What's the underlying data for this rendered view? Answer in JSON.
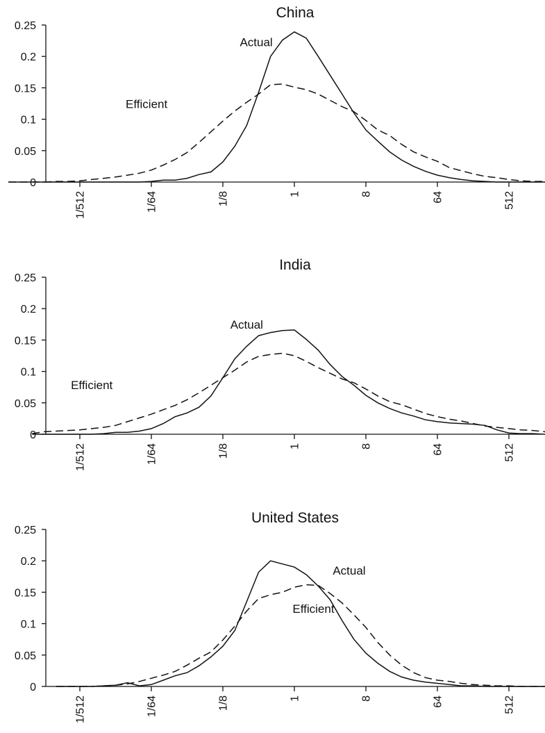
{
  "chart_data": [
    {
      "type": "line",
      "title": "China",
      "xlabel": "",
      "ylabel": "",
      "x_scale": "log2",
      "x_ticks": [
        "1/512",
        "1/64",
        "1/8",
        "1",
        "8",
        "64",
        "512"
      ],
      "ylim": [
        0,
        0.25
      ],
      "y_ticks": [
        "0",
        "0.05",
        "0.1",
        "0.15",
        "0.2",
        "0.25"
      ],
      "x": [
        -12,
        -11.5,
        -11,
        -10.5,
        -10,
        -9.5,
        -9,
        -8.5,
        -8,
        -7.5,
        -7,
        -6.5,
        -6,
        -5.5,
        -5,
        -4.5,
        -4,
        -3.5,
        -3,
        -2.5,
        -2,
        -1.5,
        -1,
        -0.5,
        0,
        0.5,
        1,
        1.5,
        2,
        2.5,
        3,
        3.5,
        4,
        4.5,
        5,
        5.5,
        6,
        6.5,
        7,
        7.5,
        8,
        8.5,
        9,
        9.5,
        10,
        10.5,
        11
      ],
      "series": [
        {
          "name": "Actual",
          "values": [
            0,
            0,
            0,
            0,
            0,
            0,
            0,
            0,
            0,
            0,
            0,
            0,
            0.001,
            0.003,
            0.003,
            0.006,
            0.012,
            0.016,
            0.032,
            0.057,
            0.09,
            0.143,
            0.2,
            0.226,
            0.239,
            0.229,
            0.2,
            0.17,
            0.14,
            0.11,
            0.083,
            0.065,
            0.048,
            0.035,
            0.025,
            0.017,
            0.011,
            0.007,
            0.004,
            0.002,
            0.001,
            0,
            0,
            0,
            0,
            0,
            0
          ]
        },
        {
          "name": "Efficient",
          "values": [
            0,
            0,
            0,
            0,
            0.001,
            0.001,
            0.002,
            0.004,
            0.006,
            0.008,
            0.011,
            0.014,
            0.019,
            0.027,
            0.036,
            0.047,
            0.063,
            0.08,
            0.097,
            0.113,
            0.127,
            0.14,
            0.155,
            0.156,
            0.151,
            0.147,
            0.14,
            0.13,
            0.12,
            0.112,
            0.098,
            0.083,
            0.074,
            0.06,
            0.048,
            0.04,
            0.033,
            0.023,
            0.018,
            0.013,
            0.009,
            0.007,
            0.004,
            0.002,
            0.001,
            0.001,
            0
          ]
        }
      ],
      "annotations": [
        {
          "text": "Actual",
          "x": -1.6,
          "y": 0.216
        },
        {
          "text": "Efficient",
          "x": -6.2,
          "y": 0.118
        }
      ]
    },
    {
      "type": "line",
      "title": "India",
      "xlabel": "",
      "ylabel": "",
      "x_scale": "log2",
      "x_ticks": [
        "1/512",
        "1/64",
        "1/8",
        "1",
        "8",
        "64",
        "512"
      ],
      "ylim": [
        0,
        0.25
      ],
      "y_ticks": [
        "0",
        "0.05",
        "0.1",
        "0.15",
        "0.2",
        "0.25"
      ],
      "x": [
        -11,
        -10.5,
        -10,
        -9.5,
        -9,
        -8.5,
        -8,
        -7.5,
        -7,
        -6.5,
        -6,
        -5.5,
        -5,
        -4.5,
        -4,
        -3.5,
        -3,
        -2.5,
        -2,
        -1.5,
        -1,
        -0.5,
        0,
        0.5,
        1,
        1.5,
        2,
        2.5,
        3,
        3.5,
        4,
        4.5,
        5,
        5.5,
        6,
        6.5,
        7,
        7.5,
        8,
        8.5,
        9,
        9.5,
        10,
        10.5,
        11
      ],
      "series": [
        {
          "name": "Actual",
          "values": [
            0,
            0,
            0,
            0,
            0,
            0,
            0.001,
            0.003,
            0.003,
            0.005,
            0.009,
            0.017,
            0.028,
            0.034,
            0.043,
            0.061,
            0.09,
            0.12,
            0.14,
            0.157,
            0.162,
            0.165,
            0.166,
            0.151,
            0.134,
            0.111,
            0.092,
            0.078,
            0.062,
            0.05,
            0.041,
            0.034,
            0.029,
            0.023,
            0.02,
            0.018,
            0.017,
            0.016,
            0.014,
            0.007,
            0.002,
            0.001,
            0.001,
            0,
            0
          ]
        },
        {
          "name": "Efficient",
          "values": [
            0.001,
            0.004,
            0.005,
            0.006,
            0.007,
            0.009,
            0.011,
            0.014,
            0.02,
            0.026,
            0.032,
            0.039,
            0.046,
            0.055,
            0.066,
            0.078,
            0.09,
            0.102,
            0.115,
            0.124,
            0.127,
            0.129,
            0.125,
            0.116,
            0.106,
            0.097,
            0.088,
            0.082,
            0.072,
            0.061,
            0.052,
            0.047,
            0.04,
            0.033,
            0.028,
            0.024,
            0.021,
            0.017,
            0.013,
            0.011,
            0.009,
            0.007,
            0.006,
            0.004,
            0.002
          ]
        }
      ],
      "annotations": [
        {
          "text": "Actual",
          "x": -2.0,
          "y": 0.168
        },
        {
          "text": "Efficient",
          "x": -8.5,
          "y": 0.072
        }
      ]
    },
    {
      "type": "line",
      "title": "United States",
      "xlabel": "",
      "ylabel": "",
      "x_scale": "log2",
      "x_ticks": [
        "1/512",
        "1/64",
        "1/8",
        "1",
        "8",
        "64",
        "512"
      ],
      "ylim": [
        0,
        0.25
      ],
      "y_ticks": [
        "0",
        "0.05",
        "0.1",
        "0.15",
        "0.2",
        "0.25"
      ],
      "x": [
        -10,
        -9.5,
        -9,
        -8.5,
        -8,
        -7.5,
        -7,
        -6.5,
        -6,
        -5.5,
        -5,
        -4.5,
        -4,
        -3.5,
        -3,
        -2.5,
        -2,
        -1.5,
        -1,
        -0.5,
        0,
        0.5,
        1,
        1.5,
        2,
        2.5,
        3,
        3.5,
        4,
        4.5,
        5,
        5.5,
        6,
        6.5,
        7,
        7.5,
        8,
        8.5,
        9,
        9.5,
        10,
        10.5,
        11
      ],
      "series": [
        {
          "name": "Actual",
          "values": [
            0,
            0,
            0,
            0,
            0.001,
            0.002,
            0.006,
            0.001,
            0.003,
            0.01,
            0.017,
            0.022,
            0.033,
            0.047,
            0.064,
            0.089,
            0.135,
            0.182,
            0.2,
            0.195,
            0.19,
            0.178,
            0.16,
            0.138,
            0.105,
            0.075,
            0.053,
            0.037,
            0.024,
            0.015,
            0.01,
            0.007,
            0.005,
            0.003,
            0.001,
            0.001,
            0,
            0,
            0,
            0,
            0,
            0,
            0
          ]
        },
        {
          "name": "Efficient",
          "values": [
            0,
            0,
            0,
            0,
            0.001,
            0.002,
            0.004,
            0.008,
            0.013,
            0.018,
            0.024,
            0.034,
            0.045,
            0.055,
            0.074,
            0.096,
            0.12,
            0.14,
            0.146,
            0.15,
            0.158,
            0.162,
            0.161,
            0.148,
            0.133,
            0.114,
            0.094,
            0.07,
            0.05,
            0.034,
            0.022,
            0.014,
            0.01,
            0.008,
            0.005,
            0.003,
            0.002,
            0.001,
            0.001,
            0,
            0,
            0,
            0
          ]
        }
      ],
      "annotations": [
        {
          "text": "Actual",
          "x": 2.3,
          "y": 0.178
        },
        {
          "text": "Efficient",
          "x": 0.8,
          "y": 0.117
        }
      ]
    }
  ]
}
